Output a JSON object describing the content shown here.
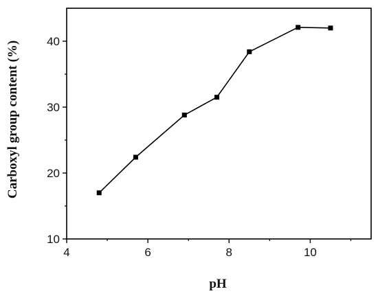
{
  "chart_data": {
    "type": "line",
    "title": "",
    "xlabel": "pH",
    "ylabel": "Carboxyl group content (%)",
    "xlim": [
      4,
      11.5
    ],
    "ylim": [
      10,
      45
    ],
    "xticks": [
      4,
      6,
      8,
      10
    ],
    "yticks": [
      10,
      20,
      30,
      40
    ],
    "grid": false,
    "legend": "none",
    "marker": "square",
    "color": "#000000",
    "series": [
      {
        "x": [
          4.8,
          5.7,
          6.9,
          7.7,
          8.5,
          9.7,
          10.5
        ],
        "y": [
          17.0,
          22.4,
          28.8,
          31.5,
          38.4,
          42.1,
          42.0
        ]
      }
    ]
  }
}
